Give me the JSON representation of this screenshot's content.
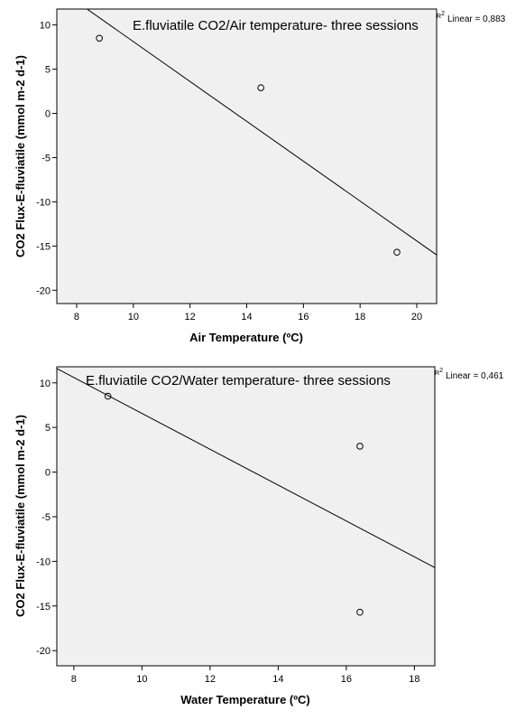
{
  "chart_data": [
    {
      "type": "scatter",
      "title": "E.fluviatile CO2/Air temperature- three sessions",
      "xlabel": "Air Temperature (ºC)",
      "ylabel": "CO2 Flux-E-fluviatile (mmol m-2 d-1)",
      "xlim": [
        7.3,
        20.7
      ],
      "ylim": [
        -21.5,
        11.8
      ],
      "xticks": [
        "8",
        "10",
        "12",
        "14",
        "16",
        "18",
        "20"
      ],
      "yticks": [
        "10",
        "5",
        "0",
        "-5",
        "-10",
        "-15",
        "-20"
      ],
      "r2_label": "Linear = 0,883",
      "grid": false,
      "points": [
        {
          "x": 8.8,
          "y": 8.5
        },
        {
          "x": 14.5,
          "y": 2.9
        },
        {
          "x": 19.3,
          "y": -15.7
        }
      ],
      "fit_line": [
        {
          "x": 7.3,
          "y": 14.2
        },
        {
          "x": 20.7,
          "y": -16.0
        }
      ]
    },
    {
      "type": "scatter",
      "title": "E.fluviatile CO2/Water temperature- three sessions",
      "xlabel": "Water Temperature (ºC)",
      "ylabel": "CO2 Flux-E-fluviatile (mmol m-2 d-1)",
      "xlim": [
        7.5,
        18.6
      ],
      "ylim": [
        -21.7,
        11.8
      ],
      "xticks": [
        "8",
        "10",
        "12",
        "14",
        "16",
        "18"
      ],
      "yticks": [
        "10",
        "5",
        "0",
        "-5",
        "-10",
        "-15",
        "-20"
      ],
      "r2_label": "Linear = 0,461",
      "grid": false,
      "points": [
        {
          "x": 9.0,
          "y": 8.5
        },
        {
          "x": 16.4,
          "y": 2.9
        },
        {
          "x": 16.4,
          "y": -15.7
        }
      ],
      "fit_line": [
        {
          "x": 7.5,
          "y": 11.6
        },
        {
          "x": 18.6,
          "y": -10.7
        }
      ]
    }
  ]
}
